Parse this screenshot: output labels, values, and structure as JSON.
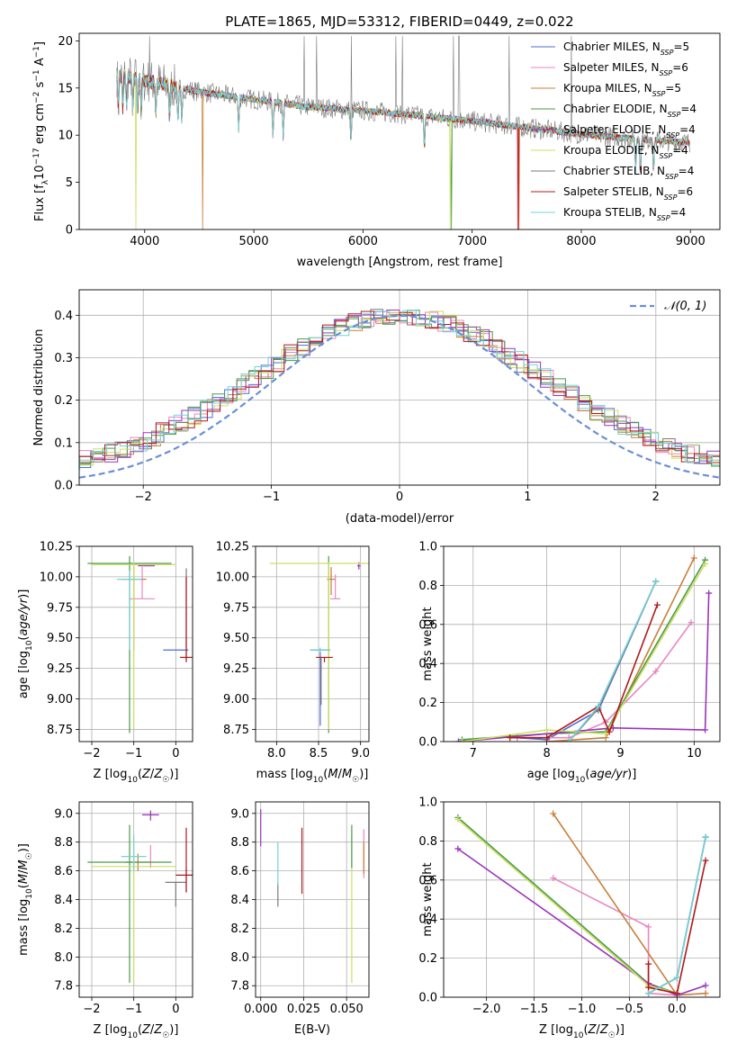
{
  "colors": {
    "chabrier_miles": "#4e6bd4",
    "salpeter_miles": "#e887c0",
    "kroupa_miles": "#c87f3a",
    "chabrier_elodie": "#4a9a4a",
    "salpeter_elodie": "#9a35b8",
    "kroupa_elodie": "#ccdf62",
    "chabrier_stelib": "#7a7a7a",
    "salpeter_stelib": "#b01818",
    "kroupa_stelib": "#74d2d8",
    "gaussian": "#6a8fd6"
  },
  "chart_data": [
    {
      "id": "spectrum",
      "type": "line",
      "title": "PLATE=1865, MJD=53312, FIBERID=0449, z=0.022",
      "xlabel": "wavelength [Angstrom, rest frame]",
      "ylabel": "Flux [fλ10⁻¹⁷ erg cm⁻² s⁻¹ A⁻¹]",
      "xlim": [
        3400,
        9270
      ],
      "ylim": [
        0,
        20.8
      ],
      "xticks": [
        4000,
        5000,
        6000,
        7000,
        8000,
        9000
      ],
      "yticks": [
        0,
        5,
        10,
        15,
        20
      ],
      "grid": false,
      "legend_position": "top-right",
      "continuum": [
        [
          3740,
          16.5
        ],
        [
          4000,
          15.8
        ],
        [
          4500,
          14.6
        ],
        [
          5000,
          13.8
        ],
        [
          5500,
          13.0
        ],
        [
          6000,
          12.6
        ],
        [
          6500,
          12.1
        ],
        [
          7000,
          11.5
        ],
        [
          7500,
          10.8
        ],
        [
          8000,
          10.1
        ],
        [
          8500,
          9.6
        ],
        [
          9000,
          9.2
        ]
      ],
      "absorption_lines": [
        3760,
        3800,
        3835,
        3890,
        3934,
        3969,
        4102,
        4227,
        4305,
        4340,
        4861,
        5175,
        5270,
        5890,
        6563,
        8498,
        8542,
        8662
      ],
      "sky_spikes": [
        4047,
        5461,
        5577,
        5895,
        6300,
        6363,
        6830,
        6880,
        7340,
        7910
      ],
      "legend": [
        {
          "label": "Chabrier MILES, N",
          "sub": "SSP",
          "suffix": "=5",
          "color_key": "chabrier_miles"
        },
        {
          "label": "Salpeter MILES, N",
          "sub": "SSP",
          "suffix": "=6",
          "color_key": "salpeter_miles"
        },
        {
          "label": "Kroupa MILES, N",
          "sub": "SSP",
          "suffix": "=5",
          "color_key": "kroupa_miles"
        },
        {
          "label": "Chabrier ELODIE, N",
          "sub": "SSP",
          "suffix": "=4",
          "color_key": "chabrier_elodie"
        },
        {
          "label": "Salpeter ELODIE, N",
          "sub": "SSP",
          "suffix": "=4",
          "color_key": "salpeter_elodie"
        },
        {
          "label": "Kroupa ELODIE, N",
          "sub": "SSP",
          "suffix": "=4",
          "color_key": "kroupa_elodie"
        },
        {
          "label": "Chabrier STELIB, N",
          "sub": "SSP",
          "suffix": "=4",
          "color_key": "chabrier_stelib"
        },
        {
          "label": "Salpeter STELIB, N",
          "sub": "SSP",
          "suffix": "=6",
          "color_key": "salpeter_stelib"
        },
        {
          "label": "Kroupa STELIB, N",
          "sub": "SSP",
          "suffix": "=4",
          "color_key": "kroupa_stelib"
        }
      ]
    },
    {
      "id": "residuals",
      "type": "line",
      "xlabel": "(data-model)/error",
      "ylabel": "Normed distribution",
      "xlim": [
        -2.5,
        2.5
      ],
      "ylim": [
        0,
        0.46
      ],
      "xticks": [
        -2,
        -1,
        0,
        1,
        2
      ],
      "yticks": [
        0.0,
        0.1,
        0.2,
        0.3,
        0.4
      ],
      "grid": true,
      "legend_position": "top-right",
      "legend_label": "𝒩(0, 1)",
      "series_count": 9
    },
    {
      "id": "age_vs_Z",
      "type": "scatter",
      "xlabel": "Z [log10(Z/Z☉)]",
      "ylabel": "age  [log10(age/yr)]",
      "xlim": [
        -2.3,
        0.4
      ],
      "ylim": [
        8.65,
        10.25
      ],
      "xticks": [
        -2,
        -1,
        0
      ],
      "yticks": [
        8.75,
        9.0,
        9.25,
        9.5,
        9.75,
        10.0,
        10.25
      ],
      "grid": true,
      "points": [
        {
          "s": "chabrier_miles",
          "x": 0.0,
          "xerr": 0.3,
          "y": 9.4,
          "ylo": 9.4,
          "yhi": 9.4
        },
        {
          "s": "salpeter_miles",
          "x": -0.8,
          "xerr": 0.3,
          "y": 9.82,
          "ylo": 9.82,
          "yhi": 10.08
        },
        {
          "s": "kroupa_miles",
          "x": -1.0,
          "xerr": 0.3,
          "y": 9.98,
          "ylo": 9.4,
          "yhi": 10.09
        },
        {
          "s": "chabrier_elodie",
          "x": -1.1,
          "xerr": 1.0,
          "y": 10.11,
          "ylo": 8.72,
          "yhi": 10.17
        },
        {
          "s": "salpeter_elodie",
          "x": -0.7,
          "xerr": 0.2,
          "y": 10.09,
          "ylo": 10.09,
          "yhi": 10.09
        },
        {
          "s": "kroupa_elodie",
          "x": -1.0,
          "xerr": 1.0,
          "y": 10.1,
          "ylo": 8.75,
          "yhi": 10.12
        },
        {
          "s": "chabrier_stelib",
          "x": 0.25,
          "xerr": 0.0,
          "y": 9.35,
          "ylo": 9.32,
          "yhi": 10.07
        },
        {
          "s": "salpeter_stelib",
          "x": 0.25,
          "xerr": 0.15,
          "y": 9.34,
          "ylo": 9.3,
          "yhi": 10.0
        },
        {
          "s": "kroupa_stelib",
          "x": -1.1,
          "xerr": 0.3,
          "y": 9.98,
          "ylo": 9.4,
          "yhi": 10.05
        }
      ]
    },
    {
      "id": "age_vs_mass",
      "type": "scatter",
      "xlabel": "mass [log10(M/M☉)]",
      "xlim": [
        7.75,
        9.1
      ],
      "ylim": [
        8.65,
        10.25
      ],
      "xticks": [
        8.0,
        8.5,
        9.0
      ],
      "yticks": [
        8.75,
        9.0,
        9.25,
        9.5,
        9.75,
        10.0,
        10.25
      ],
      "grid": true,
      "points": [
        {
          "s": "chabrier_miles",
          "x": 8.52,
          "xerr": 0.12,
          "y": 9.4,
          "ylo": 8.78,
          "yhi": 9.4
        },
        {
          "s": "salpeter_miles",
          "x": 8.7,
          "xerr": 0.06,
          "y": 9.82,
          "ylo": 9.82,
          "yhi": 10.02
        },
        {
          "s": "kroupa_miles",
          "x": 8.65,
          "xerr": 0.05,
          "y": 9.98,
          "ylo": 9.85,
          "yhi": 10.08
        },
        {
          "s": "chabrier_elodie",
          "x": 8.62,
          "xerr": 0.0,
          "y": 10.11,
          "ylo": 8.72,
          "yhi": 10.17
        },
        {
          "s": "salpeter_elodie",
          "x": 8.98,
          "xerr": 0.02,
          "y": 10.09,
          "ylo": 10.06,
          "yhi": 10.12
        },
        {
          "s": "kroupa_elodie",
          "x": 8.62,
          "xerr": 0.7,
          "y": 10.11,
          "ylo": 8.75,
          "yhi": 10.12
        },
        {
          "s": "chabrier_stelib",
          "x": 8.53,
          "xerr": 0.0,
          "y": 9.34,
          "ylo": 8.95,
          "yhi": 9.34
        },
        {
          "s": "salpeter_stelib",
          "x": 8.57,
          "xerr": 0.1,
          "y": 9.34,
          "ylo": 9.3,
          "yhi": 9.34
        },
        {
          "s": "kroupa_stelib",
          "x": 8.52,
          "xerr": 0.12,
          "y": 9.4,
          "ylo": 9.38,
          "yhi": 9.42
        }
      ]
    },
    {
      "id": "mass_weight_vs_age",
      "type": "line",
      "xlabel": "age  [log10(age/yr)]",
      "ylabel": "mass weight",
      "xlim": [
        6.6,
        10.35
      ],
      "ylim": [
        0,
        1.0
      ],
      "xticks": [
        7,
        8,
        9,
        10
      ],
      "yticks": [
        0.0,
        0.2,
        0.4,
        0.6,
        0.8,
        1.0
      ],
      "grid": true,
      "series": [
        {
          "s": "chabrier_miles",
          "points": [
            [
              7.6,
              0.02
            ],
            [
              8.0,
              0.01
            ],
            [
              8.7,
              0.16
            ],
            [
              9.48,
              0.82
            ]
          ]
        },
        {
          "s": "salpeter_miles",
          "points": [
            [
              7.6,
              0.02
            ],
            [
              8.3,
              0.02
            ],
            [
              8.8,
              0.1
            ],
            [
              9.48,
              0.36
            ],
            [
              9.96,
              0.61
            ]
          ]
        },
        {
          "s": "kroupa_miles",
          "points": [
            [
              8.0,
              0.0
            ],
            [
              8.8,
              0.02
            ],
            [
              10.0,
              0.94
            ]
          ]
        },
        {
          "s": "chabrier_elodie",
          "points": [
            [
              6.85,
              0.01
            ],
            [
              8.0,
              0.04
            ],
            [
              8.8,
              0.05
            ],
            [
              10.15,
              0.93
            ]
          ]
        },
        {
          "s": "salpeter_elodie",
          "points": [
            [
              6.8,
              0.0
            ],
            [
              8.9,
              0.07
            ],
            [
              10.15,
              0.06
            ],
            [
              10.2,
              0.76
            ]
          ]
        },
        {
          "s": "kroupa_elodie",
          "points": [
            [
              6.85,
              0.0
            ],
            [
              8.0,
              0.06
            ],
            [
              8.8,
              0.04
            ],
            [
              10.15,
              0.91
            ]
          ]
        },
        {
          "s": "chabrier_stelib",
          "points": [
            [
              8.3,
              0.0
            ],
            [
              8.7,
              0.17
            ],
            [
              9.48,
              0.82
            ]
          ]
        },
        {
          "s": "salpeter_stelib",
          "points": [
            [
              7.5,
              0.02
            ],
            [
              8.0,
              0.02
            ],
            [
              8.7,
              0.18
            ],
            [
              8.85,
              0.05
            ],
            [
              9.5,
              0.7
            ]
          ]
        },
        {
          "s": "kroupa_stelib",
          "points": [
            [
              8.3,
              0.0
            ],
            [
              8.7,
              0.18
            ],
            [
              9.48,
              0.82
            ]
          ]
        }
      ]
    },
    {
      "id": "mass_vs_Z",
      "type": "scatter",
      "xlabel": "Z [log10(Z/Z☉)]",
      "ylabel": "mass [log10(M/M☉)]",
      "xlim": [
        -2.3,
        0.4
      ],
      "ylim": [
        7.72,
        9.08
      ],
      "xticks": [
        -2,
        -1,
        0
      ],
      "yticks": [
        7.8,
        8.0,
        8.2,
        8.4,
        8.6,
        8.8,
        9.0
      ],
      "grid": true,
      "points": [
        {
          "s": "chabrier_miles",
          "x": 0.25,
          "xerr": 0.0,
          "y": 8.52,
          "ylo": 8.45,
          "yhi": 8.62
        },
        {
          "s": "salpeter_miles",
          "x": -0.6,
          "xerr": 0.0,
          "y": 8.7,
          "ylo": 8.62,
          "yhi": 8.78
        },
        {
          "s": "kroupa_miles",
          "x": -0.9,
          "xerr": 0.3,
          "y": 8.66,
          "ylo": 8.6,
          "yhi": 8.72
        },
        {
          "s": "chabrier_elodie",
          "x": -1.1,
          "xerr": 1.0,
          "y": 8.66,
          "ylo": 7.82,
          "yhi": 8.92
        },
        {
          "s": "salpeter_elodie",
          "x": -0.6,
          "xerr": 0.2,
          "y": 8.99,
          "ylo": 8.95,
          "yhi": 9.02
        },
        {
          "s": "kroupa_elodie",
          "x": -1.0,
          "xerr": 1.0,
          "y": 8.63,
          "ylo": 7.8,
          "yhi": 8.85
        },
        {
          "s": "chabrier_stelib",
          "x": 0.0,
          "xerr": 0.25,
          "y": 8.52,
          "ylo": 8.35,
          "yhi": 8.52
        },
        {
          "s": "salpeter_stelib",
          "x": 0.25,
          "xerr": 0.25,
          "y": 8.57,
          "ylo": 8.45,
          "yhi": 8.9
        },
        {
          "s": "kroupa_stelib",
          "x": -1.0,
          "xerr": 0.3,
          "y": 8.7,
          "ylo": 8.6,
          "yhi": 8.85
        }
      ]
    },
    {
      "id": "mass_vs_EBV",
      "type": "scatter",
      "xlabel": "E(B-V)",
      "xlim": [
        -0.003,
        0.063
      ],
      "ylim": [
        7.72,
        9.08
      ],
      "xticks": [
        0.0,
        0.025,
        0.05
      ],
      "yticks": [
        7.8,
        8.0,
        8.2,
        8.4,
        8.6,
        8.8,
        9.0
      ],
      "grid": true,
      "points": [
        {
          "s": "salpeter_elodie",
          "x": 0.0,
          "y": 8.95,
          "ylo": 8.77,
          "yhi": 9.03
        },
        {
          "s": "chabrier_stelib",
          "x": 0.01,
          "y": 8.52,
          "ylo": 8.35,
          "yhi": 8.52
        },
        {
          "s": "kroupa_stelib",
          "x": 0.01,
          "y": 8.7,
          "ylo": 8.5,
          "yhi": 8.8
        },
        {
          "s": "salpeter_stelib",
          "x": 0.024,
          "y": 8.57,
          "ylo": 8.44,
          "yhi": 8.9
        },
        {
          "s": "kroupa_elodie",
          "x": 0.053,
          "y": 8.63,
          "ylo": 7.82,
          "yhi": 8.85
        },
        {
          "s": "chabrier_elodie",
          "x": 0.053,
          "y": 8.8,
          "ylo": 8.62,
          "yhi": 8.92
        },
        {
          "s": "salpeter_miles",
          "x": 0.06,
          "y": 8.7,
          "ylo": 8.55,
          "yhi": 8.89
        },
        {
          "s": "kroupa_miles",
          "x": 0.06,
          "y": 8.7,
          "ylo": 8.58,
          "yhi": 8.8
        }
      ]
    },
    {
      "id": "mass_weight_vs_Z",
      "type": "line",
      "xlabel": "Z [log10(Z/Z☉)]",
      "ylabel": "mass weight",
      "xlim": [
        -2.45,
        0.45
      ],
      "ylim": [
        0,
        1.0
      ],
      "xticks": [
        -2.0,
        -1.5,
        -1.0,
        -0.5,
        0.0
      ],
      "yticks": [
        0.0,
        0.2,
        0.4,
        0.6,
        0.8,
        1.0
      ],
      "grid": true,
      "series": [
        {
          "s": "chabrier_miles",
          "points": [
            [
              -0.3,
              0.02
            ],
            [
              0.0,
              0.1
            ],
            [
              0.3,
              0.82
            ]
          ]
        },
        {
          "s": "salpeter_miles",
          "points": [
            [
              -1.3,
              0.61
            ],
            [
              -0.3,
              0.36
            ],
            [
              -0.3,
              0.02
            ],
            [
              0.0,
              0.01
            ]
          ]
        },
        {
          "s": "kroupa_miles",
          "points": [
            [
              -1.3,
              0.94
            ],
            [
              0.0,
              0.01
            ],
            [
              0.3,
              0.02
            ]
          ]
        },
        {
          "s": "chabrier_elodie",
          "points": [
            [
              -2.3,
              0.92
            ],
            [
              -0.3,
              0.07
            ],
            [
              0.0,
              0.02
            ]
          ]
        },
        {
          "s": "salpeter_elodie",
          "points": [
            [
              -2.3,
              0.76
            ],
            [
              -0.3,
              0.07
            ],
            [
              0.0,
              0.01
            ],
            [
              0.3,
              0.06
            ]
          ]
        },
        {
          "s": "kroupa_elodie",
          "points": [
            [
              -2.3,
              0.91
            ],
            [
              -0.3,
              0.06
            ],
            [
              0.0,
              0.02
            ]
          ]
        },
        {
          "s": "chabrier_stelib",
          "points": [
            [
              -0.3,
              0.02
            ],
            [
              0.0,
              0.1
            ],
            [
              0.3,
              0.82
            ]
          ]
        },
        {
          "s": "salpeter_stelib",
          "points": [
            [
              -0.3,
              0.17
            ],
            [
              -0.3,
              0.05
            ],
            [
              0.0,
              0.02
            ],
            [
              0.3,
              0.7
            ]
          ]
        },
        {
          "s": "kroupa_stelib",
          "points": [
            [
              -0.3,
              0.02
            ],
            [
              0.0,
              0.1
            ],
            [
              0.3,
              0.82
            ]
          ]
        }
      ]
    }
  ]
}
